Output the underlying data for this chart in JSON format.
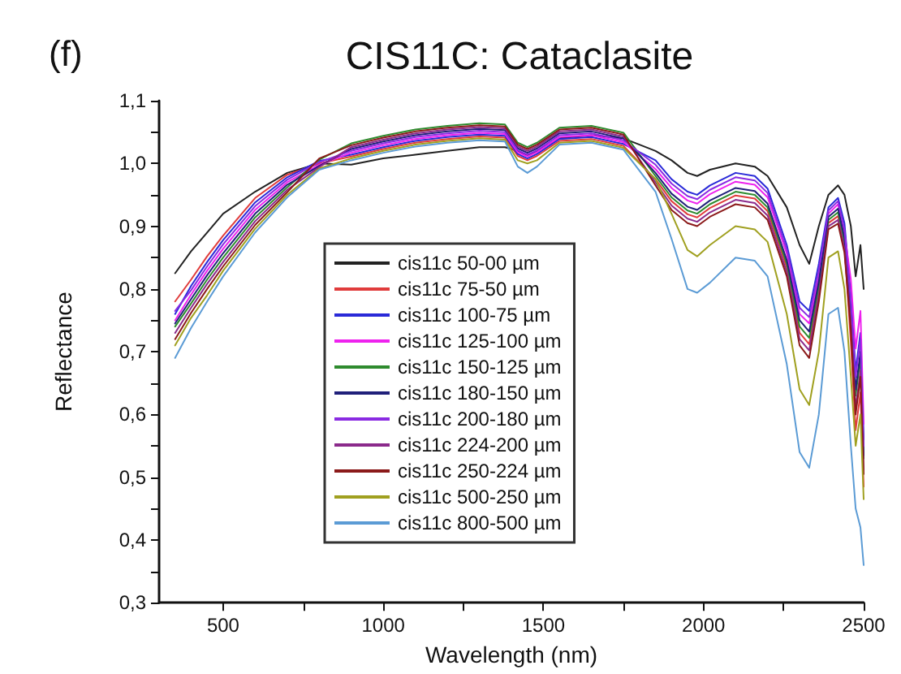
{
  "chart_data": {
    "type": "line",
    "title": "CIS11C: Cataclasite",
    "xlabel": "Wavelength (nm)",
    "ylabel": "Reflectance",
    "annotations": [
      "(f)"
    ],
    "x": [
      350,
      400,
      450,
      500,
      600,
      700,
      800,
      900,
      1000,
      1100,
      1200,
      1300,
      1380,
      1420,
      1450,
      1480,
      1550,
      1650,
      1750,
      1850,
      1900,
      1950,
      1980,
      2020,
      2100,
      2160,
      2200,
      2260,
      2300,
      2330,
      2360,
      2390,
      2420,
      2440,
      2460,
      2475,
      2490,
      2500
    ],
    "xlim": [
      300,
      2500
    ],
    "xticks": [
      500,
      {
        "value": 750,
        "label": null
      },
      1000,
      {
        "value": 1250,
        "label": null
      },
      1500,
      {
        "value": 1750,
        "label": null
      },
      2000,
      {
        "value": 2250,
        "label": null
      },
      2500
    ],
    "ylim": [
      0.3,
      1.1
    ],
    "yticks": [
      {
        "value": 0.3,
        "label": "0,3"
      },
      {
        "value": 0.35,
        "label": null
      },
      {
        "value": 0.4,
        "label": "0,4"
      },
      {
        "value": 0.45,
        "label": null
      },
      {
        "value": 0.5,
        "label": "0,5"
      },
      {
        "value": 0.55,
        "label": null
      },
      {
        "value": 0.6,
        "label": "0,6"
      },
      {
        "value": 0.65,
        "label": null
      },
      {
        "value": 0.7,
        "label": "0,7"
      },
      {
        "value": 0.75,
        "label": null
      },
      {
        "value": 0.8,
        "label": "0,8"
      },
      {
        "value": 0.85,
        "label": null
      },
      {
        "value": 0.9,
        "label": "0,9"
      },
      {
        "value": 0.95,
        "label": null
      },
      {
        "value": 1.0,
        "label": "1,0"
      },
      {
        "value": 1.05,
        "label": null
      },
      {
        "value": 1.1,
        "label": "1,1"
      }
    ],
    "grid": false,
    "legend": "center",
    "marker": "none",
    "line_style": "solid",
    "series": [
      {
        "name": "cis11c 50-00 µm",
        "color": "#222222",
        "values": [
          0.825,
          0.86,
          0.89,
          0.92,
          0.955,
          0.985,
          1.0,
          0.998,
          1.008,
          1.014,
          1.02,
          1.026,
          1.026,
          1.02,
          1.012,
          1.02,
          1.04,
          1.045,
          1.04,
          1.02,
          1.005,
          0.985,
          0.98,
          0.99,
          1.0,
          0.995,
          0.98,
          0.93,
          0.87,
          0.84,
          0.9,
          0.95,
          0.965,
          0.95,
          0.9,
          0.82,
          0.87,
          0.8
        ]
      },
      {
        "name": "cis11c 75-50 µm",
        "color": "#e03c3c",
        "values": [
          0.78,
          0.815,
          0.852,
          0.885,
          0.945,
          0.982,
          1.0,
          1.011,
          1.023,
          1.033,
          1.039,
          1.043,
          1.041,
          1.012,
          1.005,
          1.012,
          1.036,
          1.039,
          1.028,
          0.975,
          0.94,
          0.919,
          0.914,
          0.929,
          0.949,
          0.944,
          0.924,
          0.834,
          0.73,
          0.712,
          0.798,
          0.905,
          0.916,
          0.87,
          0.715,
          0.575,
          0.635,
          0.485
        ]
      },
      {
        "name": "cis11c 100-75 µm",
        "color": "#2a2ad8",
        "values": [
          0.76,
          0.805,
          0.843,
          0.878,
          0.938,
          0.978,
          1.004,
          1.014,
          1.026,
          1.036,
          1.042,
          1.046,
          1.044,
          1.015,
          1.008,
          1.015,
          1.039,
          1.042,
          1.031,
          1.005,
          0.975,
          0.955,
          0.95,
          0.965,
          0.985,
          0.98,
          0.96,
          0.87,
          0.78,
          0.765,
          0.84,
          0.93,
          0.945,
          0.905,
          0.79,
          0.67,
          0.73,
          0.56
        ]
      },
      {
        "name": "cis11c 125-100 µm",
        "color": "#ee22ee",
        "values": [
          0.75,
          0.791,
          0.829,
          0.864,
          0.926,
          0.97,
          0.998,
          1.017,
          1.029,
          1.039,
          1.045,
          1.049,
          1.047,
          1.018,
          1.011,
          1.018,
          1.042,
          1.045,
          1.034,
          0.991,
          0.961,
          0.941,
          0.936,
          0.951,
          0.971,
          0.966,
          0.946,
          0.856,
          0.76,
          0.745,
          0.82,
          0.92,
          0.935,
          0.89,
          0.815,
          0.705,
          0.765,
          0.585
        ]
      },
      {
        "name": "cis11c 150-125 µm",
        "color": "#2e8b2e",
        "values": [
          0.74,
          0.777,
          0.815,
          0.85,
          0.914,
          0.962,
          1.006,
          1.032,
          1.044,
          1.054,
          1.06,
          1.064,
          1.062,
          1.033,
          1.026,
          1.033,
          1.057,
          1.06,
          1.049,
          0.98,
          0.946,
          0.925,
          0.92,
          0.935,
          0.955,
          0.95,
          0.93,
          0.84,
          0.74,
          0.722,
          0.805,
          0.91,
          0.922,
          0.876,
          0.755,
          0.63,
          0.69,
          0.53
        ]
      },
      {
        "name": "cis11c 180-150 µm",
        "color": "#20207a",
        "values": [
          0.745,
          0.784,
          0.822,
          0.857,
          0.92,
          0.966,
          0.996,
          1.023,
          1.035,
          1.045,
          1.051,
          1.055,
          1.053,
          1.024,
          1.017,
          1.024,
          1.048,
          1.051,
          1.04,
          0.985,
          0.952,
          0.931,
          0.926,
          0.941,
          0.961,
          0.956,
          0.936,
          0.846,
          0.75,
          0.732,
          0.812,
          0.915,
          0.928,
          0.882,
          0.762,
          0.64,
          0.7,
          0.535
        ]
      },
      {
        "name": "cis11c 200-180 µm",
        "color": "#8a2be2",
        "values": [
          0.765,
          0.798,
          0.836,
          0.871,
          0.932,
          0.974,
          1.002,
          1.02,
          1.032,
          1.042,
          1.048,
          1.052,
          1.05,
          1.021,
          1.014,
          1.021,
          1.045,
          1.048,
          1.037,
          0.998,
          0.968,
          0.948,
          0.943,
          0.958,
          0.978,
          0.973,
          0.953,
          0.863,
          0.77,
          0.755,
          0.83,
          0.925,
          0.94,
          0.895,
          0.78,
          0.66,
          0.72,
          0.55
        ]
      },
      {
        "name": "cis11c 224-200 µm",
        "color": "#8b2a8b",
        "values": [
          0.73,
          0.77,
          0.808,
          0.843,
          0.908,
          0.958,
          0.994,
          1.026,
          1.038,
          1.048,
          1.054,
          1.058,
          1.056,
          1.027,
          1.02,
          1.027,
          1.051,
          1.054,
          1.043,
          0.97,
          0.933,
          0.912,
          0.907,
          0.922,
          0.942,
          0.937,
          0.917,
          0.827,
          0.72,
          0.702,
          0.79,
          0.9,
          0.91,
          0.864,
          0.742,
          0.61,
          0.67,
          0.512
        ]
      },
      {
        "name": "cis11c 250-224 µm",
        "color": "#8b1a1a",
        "values": [
          0.72,
          0.762,
          0.8,
          0.836,
          0.902,
          0.954,
          1.008,
          1.029,
          1.041,
          1.051,
          1.057,
          1.061,
          1.059,
          1.03,
          1.023,
          1.03,
          1.054,
          1.057,
          1.046,
          0.965,
          0.926,
          0.905,
          0.9,
          0.915,
          0.935,
          0.93,
          0.91,
          0.82,
          0.71,
          0.69,
          0.78,
          0.895,
          0.904,
          0.858,
          0.735,
          0.6,
          0.66,
          0.505
        ]
      },
      {
        "name": "cis11c 500-250 µm",
        "color": "#a0a020",
        "values": [
          0.71,
          0.754,
          0.79,
          0.829,
          0.896,
          0.95,
          0.992,
          1.008,
          1.02,
          1.03,
          1.036,
          1.04,
          1.038,
          1.005,
          1.0,
          1.005,
          1.033,
          1.036,
          1.025,
          0.975,
          0.92,
          0.862,
          0.852,
          0.87,
          0.9,
          0.895,
          0.875,
          0.76,
          0.64,
          0.615,
          0.7,
          0.85,
          0.86,
          0.8,
          0.66,
          0.55,
          0.6,
          0.465
        ]
      },
      {
        "name": "cis11c 800-500 µm",
        "color": "#5b9bd5",
        "values": [
          0.69,
          0.738,
          0.78,
          0.82,
          0.89,
          0.946,
          0.99,
          1.005,
          1.017,
          1.027,
          1.033,
          1.037,
          1.035,
          0.995,
          0.985,
          0.995,
          1.03,
          1.033,
          1.022,
          0.955,
          0.88,
          0.8,
          0.794,
          0.81,
          0.85,
          0.845,
          0.82,
          0.68,
          0.54,
          0.515,
          0.6,
          0.76,
          0.77,
          0.7,
          0.55,
          0.45,
          0.42,
          0.36
        ]
      }
    ]
  }
}
